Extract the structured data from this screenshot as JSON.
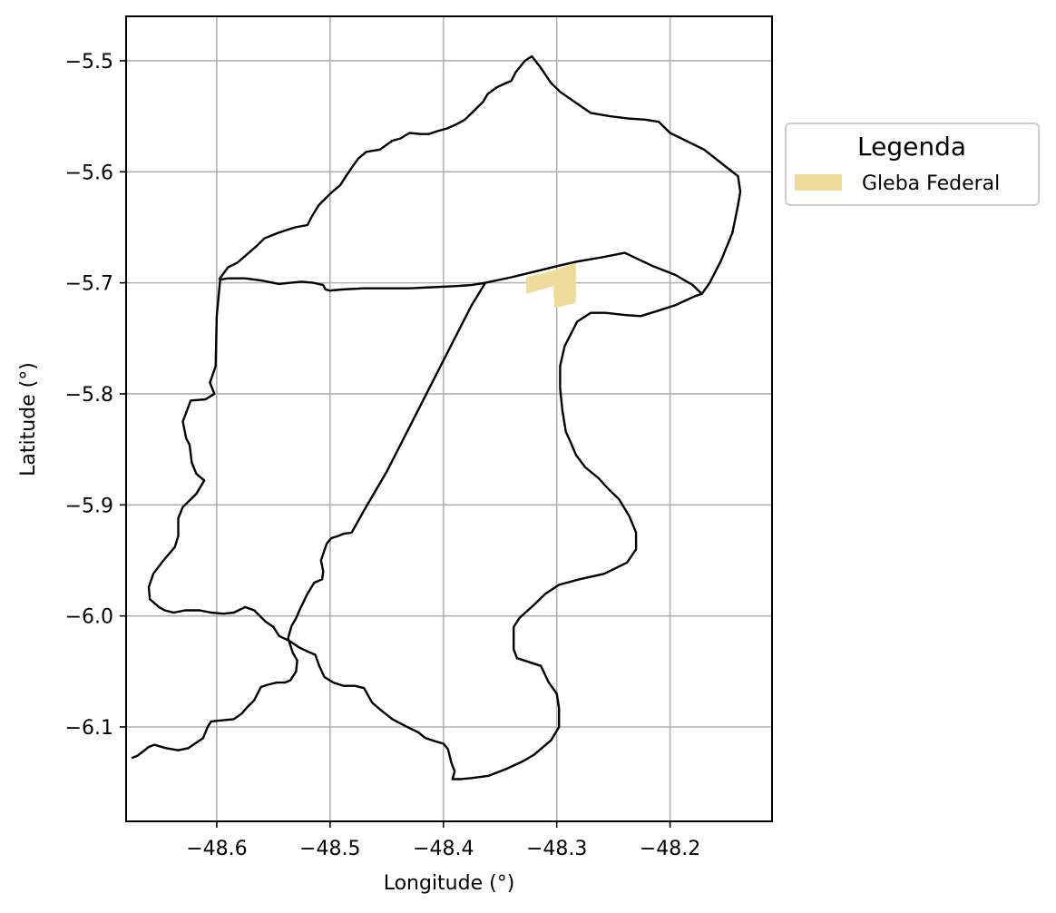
{
  "chart_data": {
    "type": "map",
    "xlabel": "Longitude (°)",
    "ylabel": "Latitude (°)",
    "xlim": [
      -48.68,
      -48.11
    ],
    "ylim": [
      -6.185,
      -5.46
    ],
    "xticks": [
      -48.6,
      -48.5,
      -48.4,
      -48.3,
      -48.2
    ],
    "yticks": [
      -5.5,
      -5.6,
      -5.7,
      -5.8,
      -5.9,
      -6.0,
      -6.1
    ],
    "grid": true,
    "legend": {
      "title": "Legenda",
      "placement": "right-outside-top",
      "entries": [
        {
          "label": "Gleba Federal",
          "color": "#f0dc9a"
        }
      ]
    },
    "outline_color": "#000000",
    "outline_west": [
      [
        -48.363,
        -5.7
      ],
      [
        -48.375,
        -5.702
      ],
      [
        -48.39,
        -5.703
      ],
      [
        -48.41,
        -5.704
      ],
      [
        -48.43,
        -5.705
      ],
      [
        -48.45,
        -5.705
      ],
      [
        -48.47,
        -5.705
      ],
      [
        -48.49,
        -5.706
      ],
      [
        -48.5,
        -5.707
      ],
      [
        -48.504,
        -5.706
      ],
      [
        -48.506,
        -5.702
      ],
      [
        -48.515,
        -5.7
      ],
      [
        -48.525,
        -5.699
      ],
      [
        -48.535,
        -5.7
      ],
      [
        -48.545,
        -5.701
      ],
      [
        -48.56,
        -5.698
      ],
      [
        -48.575,
        -5.696
      ],
      [
        -48.59,
        -5.696
      ],
      [
        -48.597,
        -5.697
      ],
      [
        -48.6,
        -5.73
      ],
      [
        -48.601,
        -5.775
      ],
      [
        -48.606,
        -5.79
      ],
      [
        -48.602,
        -5.8
      ],
      [
        -48.61,
        -5.805
      ],
      [
        -48.623,
        -5.806
      ],
      [
        -48.63,
        -5.825
      ],
      [
        -48.627,
        -5.84
      ],
      [
        -48.624,
        -5.846
      ],
      [
        -48.622,
        -5.862
      ],
      [
        -48.618,
        -5.872
      ],
      [
        -48.611,
        -5.878
      ],
      [
        -48.618,
        -5.89
      ],
      [
        -48.63,
        -5.902
      ],
      [
        -48.634,
        -5.912
      ],
      [
        -48.634,
        -5.928
      ],
      [
        -48.637,
        -5.938
      ],
      [
        -48.647,
        -5.95
      ],
      [
        -48.656,
        -5.962
      ],
      [
        -48.66,
        -5.974
      ],
      [
        -48.659,
        -5.985
      ],
      [
        -48.651,
        -5.992
      ],
      [
        -48.646,
        -5.995
      ],
      [
        -48.638,
        -5.997
      ],
      [
        -48.628,
        -5.995
      ],
      [
        -48.615,
        -5.995
      ],
      [
        -48.605,
        -5.997
      ],
      [
        -48.594,
        -5.998
      ],
      [
        -48.585,
        -5.997
      ],
      [
        -48.575,
        -5.992
      ],
      [
        -48.567,
        -5.995
      ],
      [
        -48.557,
        -6.005
      ],
      [
        -48.55,
        -6.01
      ],
      [
        -48.545,
        -6.018
      ],
      [
        -48.535,
        -6.023
      ],
      [
        -48.528,
        -6.028
      ],
      [
        -48.52,
        -6.032
      ],
      [
        -48.513,
        -6.035
      ],
      [
        -48.51,
        -6.044
      ],
      [
        -48.505,
        -6.055
      ],
      [
        -48.497,
        -6.06
      ],
      [
        -48.488,
        -6.063
      ],
      [
        -48.478,
        -6.063
      ],
      [
        -48.47,
        -6.065
      ],
      [
        -48.463,
        -6.078
      ],
      [
        -48.455,
        -6.085
      ],
      [
        -48.445,
        -6.093
      ],
      [
        -48.432,
        -6.1
      ],
      [
        -48.422,
        -6.105
      ],
      [
        -48.416,
        -6.11
      ],
      [
        -48.407,
        -6.113
      ],
      [
        -48.4,
        -6.115
      ],
      [
        -48.396,
        -6.12
      ],
      [
        -48.393,
        -6.132
      ],
      [
        -48.39,
        -6.14
      ],
      [
        -48.392,
        -6.147
      ],
      [
        -48.385,
        -6.147
      ],
      [
        -48.375,
        -6.146
      ],
      [
        -48.36,
        -6.144
      ],
      [
        -48.345,
        -6.138
      ],
      [
        -48.33,
        -6.131
      ],
      [
        -48.32,
        -6.125
      ],
      [
        -48.305,
        -6.112
      ],
      [
        -48.298,
        -6.1
      ],
      [
        -48.298,
        -6.083
      ],
      [
        -48.3,
        -6.07
      ],
      [
        -48.307,
        -6.06
      ],
      [
        -48.314,
        -6.045
      ],
      [
        -48.32,
        -6.043
      ],
      [
        -48.335,
        -6.038
      ],
      [
        -48.338,
        -6.03
      ],
      [
        -48.338,
        -6.01
      ],
      [
        -48.333,
        -6.002
      ],
      [
        -48.32,
        -5.99
      ],
      [
        -48.31,
        -5.98
      ],
      [
        -48.298,
        -5.972
      ],
      [
        -48.28,
        -5.967
      ],
      [
        -48.258,
        -5.962
      ],
      [
        -48.238,
        -5.952
      ],
      [
        -48.23,
        -5.94
      ],
      [
        -48.23,
        -5.925
      ],
      [
        -48.236,
        -5.91
      ],
      [
        -48.245,
        -5.895
      ],
      [
        -48.255,
        -5.885
      ],
      [
        -48.263,
        -5.876
      ],
      [
        -48.275,
        -5.866
      ],
      [
        -48.283,
        -5.855
      ],
      [
        -48.288,
        -5.843
      ],
      [
        -48.292,
        -5.834
      ],
      [
        -48.295,
        -5.815
      ],
      [
        -48.297,
        -5.795
      ],
      [
        -48.297,
        -5.775
      ],
      [
        -48.293,
        -5.757
      ],
      [
        -48.282,
        -5.735
      ],
      [
        -48.27,
        -5.727
      ],
      [
        -48.257,
        -5.727
      ],
      [
        -48.24,
        -5.729
      ],
      [
        -48.226,
        -5.73
      ],
      [
        -48.21,
        -5.725
      ],
      [
        -48.195,
        -5.72
      ],
      [
        -48.178,
        -5.712
      ],
      [
        -48.172,
        -5.71
      ],
      [
        -48.18,
        -5.702
      ],
      [
        -48.195,
        -5.693
      ],
      [
        -48.215,
        -5.685
      ],
      [
        -48.24,
        -5.673
      ],
      [
        -48.26,
        -5.677
      ],
      [
        -48.283,
        -5.681
      ],
      [
        -48.3,
        -5.685
      ],
      [
        -48.32,
        -5.69
      ],
      [
        -48.34,
        -5.695
      ],
      [
        -48.363,
        -5.7
      ]
    ],
    "outline_east": [
      [
        -48.363,
        -5.7
      ],
      [
        -48.375,
        -5.72
      ],
      [
        -48.39,
        -5.75
      ],
      [
        -48.41,
        -5.79
      ],
      [
        -48.43,
        -5.83
      ],
      [
        -48.45,
        -5.87
      ],
      [
        -48.47,
        -5.905
      ],
      [
        -48.481,
        -5.925
      ],
      [
        -48.488,
        -5.926
      ],
      [
        -48.493,
        -5.928
      ],
      [
        -48.499,
        -5.93
      ],
      [
        -48.503,
        -5.935
      ],
      [
        -48.508,
        -5.95
      ],
      [
        -48.506,
        -5.96
      ],
      [
        -48.507,
        -5.967
      ],
      [
        -48.514,
        -5.97
      ],
      [
        -48.52,
        -5.98
      ],
      [
        -48.527,
        -5.995
      ],
      [
        -48.53,
        -6.002
      ],
      [
        -48.534,
        -6.009
      ],
      [
        -48.537,
        -6.02
      ],
      [
        -48.533,
        -6.033
      ],
      [
        -48.529,
        -6.04
      ],
      [
        -48.53,
        -6.05
      ],
      [
        -48.535,
        -6.058
      ],
      [
        -48.54,
        -6.06
      ],
      [
        -48.547,
        -6.06
      ],
      [
        -48.555,
        -6.062
      ],
      [
        -48.561,
        -6.064
      ],
      [
        -48.567,
        -6.076
      ],
      [
        -48.573,
        -6.082
      ],
      [
        -48.578,
        -6.088
      ],
      [
        -48.585,
        -6.093
      ],
      [
        -48.595,
        -6.094
      ],
      [
        -48.605,
        -6.095
      ],
      [
        -48.608,
        -6.1
      ],
      [
        -48.612,
        -6.11
      ],
      [
        -48.625,
        -6.119
      ],
      [
        -48.634,
        -6.121
      ],
      [
        -48.645,
        -6.119
      ],
      [
        -48.655,
        -6.116
      ],
      [
        -48.66,
        -6.118
      ],
      [
        -48.67,
        -6.126
      ],
      [
        -48.675,
        -6.128
      ]
    ],
    "outline_main": [
      [
        -48.363,
        -5.7
      ],
      [
        -48.34,
        -5.695
      ],
      [
        -48.32,
        -5.69
      ],
      [
        -48.3,
        -5.685
      ],
      [
        -48.283,
        -5.681
      ],
      [
        -48.26,
        -5.677
      ],
      [
        -48.24,
        -5.673
      ],
      [
        -48.215,
        -5.685
      ],
      [
        -48.195,
        -5.693
      ],
      [
        -48.18,
        -5.702
      ],
      [
        -48.172,
        -5.71
      ],
      [
        -48.165,
        -5.7
      ],
      [
        -48.155,
        -5.68
      ],
      [
        -48.145,
        -5.655
      ],
      [
        -48.14,
        -5.63
      ],
      [
        -48.138,
        -5.618
      ],
      [
        -48.14,
        -5.604
      ],
      [
        -48.155,
        -5.592
      ],
      [
        -48.17,
        -5.58
      ],
      [
        -48.19,
        -5.57
      ],
      [
        -48.2,
        -5.565
      ],
      [
        -48.21,
        -5.555
      ],
      [
        -48.222,
        -5.553
      ],
      [
        -48.237,
        -5.552
      ],
      [
        -48.253,
        -5.55
      ],
      [
        -48.27,
        -5.547
      ],
      [
        -48.28,
        -5.54
      ],
      [
        -48.297,
        -5.528
      ],
      [
        -48.305,
        -5.52
      ],
      [
        -48.315,
        -5.505
      ],
      [
        -48.322,
        -5.496
      ],
      [
        -48.328,
        -5.5
      ],
      [
        -48.336,
        -5.51
      ],
      [
        -48.34,
        -5.518
      ],
      [
        -48.349,
        -5.522
      ],
      [
        -48.353,
        -5.524
      ],
      [
        -48.361,
        -5.53
      ],
      [
        -48.365,
        -5.537
      ],
      [
        -48.373,
        -5.545
      ],
      [
        -48.381,
        -5.553
      ],
      [
        -48.388,
        -5.557
      ],
      [
        -48.397,
        -5.561
      ],
      [
        -48.404,
        -5.563
      ],
      [
        -48.413,
        -5.566
      ],
      [
        -48.42,
        -5.566
      ],
      [
        -48.43,
        -5.565
      ],
      [
        -48.438,
        -5.57
      ],
      [
        -48.445,
        -5.572
      ],
      [
        -48.456,
        -5.58
      ],
      [
        -48.468,
        -5.582
      ],
      [
        -48.475,
        -5.588
      ],
      [
        -48.48,
        -5.595
      ],
      [
        -48.486,
        -5.604
      ],
      [
        -48.491,
        -5.612
      ],
      [
        -48.498,
        -5.618
      ],
      [
        -48.505,
        -5.625
      ],
      [
        -48.51,
        -5.63
      ],
      [
        -48.516,
        -5.64
      ],
      [
        -48.52,
        -5.648
      ],
      [
        -48.531,
        -5.65
      ],
      [
        -48.546,
        -5.655
      ],
      [
        -48.558,
        -5.66
      ],
      [
        -48.565,
        -5.667
      ],
      [
        -48.574,
        -5.675
      ],
      [
        -48.582,
        -5.682
      ],
      [
        -48.59,
        -5.686
      ],
      [
        -48.598,
        -5.697
      ]
    ],
    "gleba_federal": [
      [
        -48.327,
        -5.695
      ],
      [
        -48.303,
        -5.689
      ],
      [
        -48.283,
        -5.682
      ],
      [
        -48.283,
        -5.718
      ],
      [
        -48.302,
        -5.723
      ],
      [
        -48.303,
        -5.703
      ],
      [
        -48.327,
        -5.71
      ]
    ]
  }
}
